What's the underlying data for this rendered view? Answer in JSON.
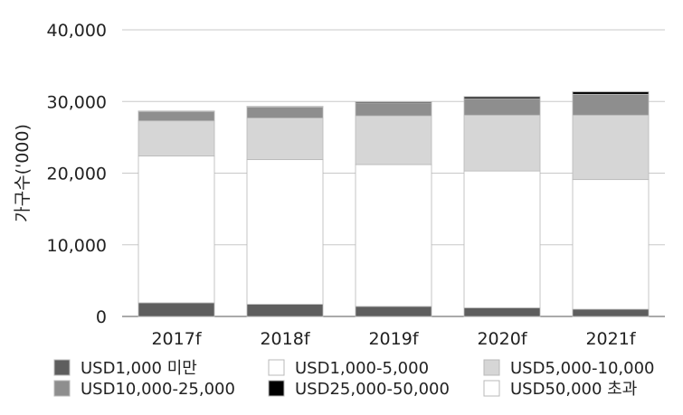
{
  "chart_data": {
    "type": "bar",
    "stacked": true,
    "title": "",
    "xlabel": "",
    "ylabel": "가구수('000)",
    "ylim": [
      0,
      40000
    ],
    "yticks": [
      0,
      10000,
      20000,
      30000,
      40000
    ],
    "ytick_labels": [
      "0",
      "10,000",
      "20,000",
      "30,000",
      "40,000"
    ],
    "grid": "horizontal",
    "legend_position": "bottom",
    "categories": [
      "2017f",
      "2018f",
      "2019f",
      "2020f",
      "2021f"
    ],
    "series": [
      {
        "name": "USD1,000 미만",
        "color": "#5e5e5e",
        "values": [
          1900,
          1700,
          1400,
          1200,
          1000
        ]
      },
      {
        "name": "USD1,000-5,000",
        "color": "#ffffff",
        "values": [
          20500,
          20200,
          19800,
          19100,
          18100
        ]
      },
      {
        "name": "USD5,000-10,000",
        "color": "#d6d6d6",
        "values": [
          4900,
          5800,
          6800,
          7800,
          9000
        ]
      },
      {
        "name": "USD10,000-25,000",
        "color": "#8e8e8e",
        "values": [
          1300,
          1500,
          1800,
          2300,
          2900
        ]
      },
      {
        "name": "USD25,000-50,000",
        "color": "#000000",
        "values": [
          60,
          100,
          150,
          250,
          350
        ]
      },
      {
        "name": "USD50,000 초과",
        "color": "#ffffff",
        "values": [
          10,
          10,
          20,
          30,
          40
        ]
      }
    ],
    "legend_order": [
      0,
      1,
      2,
      3,
      4,
      5
    ]
  }
}
